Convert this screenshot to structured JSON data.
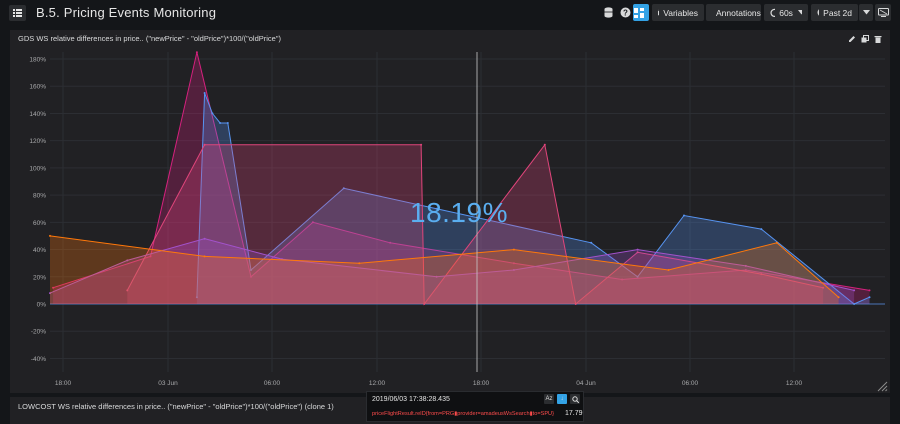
{
  "dashboard": {
    "title": "B.5. Pricing Events Monitoring"
  },
  "toolbar": {
    "variables_label": "Variables",
    "annotations_label": "Annotations",
    "refresh_label": "60s",
    "time_range_label": "Past 2d"
  },
  "panels": [
    {
      "title": "GDS WS relative differences in price.. (\"newPrice\" - \"oldPrice\")*100/(\"oldPrice\")"
    },
    {
      "title": "LOWCOST WS relative differences in price.. (\"newPrice\" - \"oldPrice\")*100/(\"oldPrice\") (clone 1)"
    }
  ],
  "hover": {
    "big_value": "18.19%"
  },
  "tooltip": {
    "time": "2019/06/03 17:38:28.435",
    "series": "priceFlightResult.reID{from=PRG▮provider=amadeusWsSearch▮to=SPU}",
    "value": "17.79"
  },
  "colors": {
    "accent": "#33a2e5",
    "magenta": "#d6217e",
    "pink": "#e0457b",
    "blue": "#5794f2",
    "violet": "#a352cc",
    "orange": "#ff780a"
  },
  "chart_data": {
    "type": "area",
    "y_ticks": [
      "180%",
      "160%",
      "140%",
      "120%",
      "100%",
      "80%",
      "60%",
      "40%",
      "20%",
      "0%",
      "-20%",
      "-40%"
    ],
    "ylim": [
      -50,
      180
    ],
    "x_ticks": [
      "18:00",
      "03 Jun",
      "06:00",
      "12:00",
      "18:00",
      "04 Jun",
      "06:00",
      "12:00"
    ],
    "grid": true,
    "legend": "none",
    "series": [
      {
        "color": "#d6217e",
        "x": [
          0.2,
          6.5,
          9.5,
          13,
          17,
          22,
          30,
          37,
          45,
          53
        ],
        "values": [
          12,
          35,
          185,
          20,
          60,
          45,
          30,
          18,
          25,
          10
        ]
      },
      {
        "color": "#5794f2",
        "x": [
          9.5,
          10,
          10.5,
          11,
          11.5,
          13,
          19,
          25,
          35,
          38,
          41,
          46,
          52,
          53
        ],
        "values": [
          5,
          155,
          140,
          133,
          133,
          25,
          85,
          70,
          45,
          20,
          65,
          55,
          0,
          5
        ]
      },
      {
        "color": "#e0457b",
        "x": [
          5,
          10,
          24,
          24.2,
          32,
          34,
          38,
          46,
          50
        ],
        "values": [
          10,
          117,
          117,
          0,
          117,
          0,
          38,
          22,
          12
        ]
      },
      {
        "color": "#a352cc",
        "x": [
          0,
          5,
          10,
          15,
          25,
          30,
          38,
          45,
          52
        ],
        "values": [
          8,
          32,
          48,
          33,
          20,
          25,
          40,
          28,
          10
        ]
      },
      {
        "color": "#ff780a",
        "x": [
          0,
          10,
          20,
          30,
          40,
          47,
          51
        ],
        "values": [
          50,
          35,
          30,
          40,
          25,
          45,
          5
        ]
      }
    ]
  }
}
